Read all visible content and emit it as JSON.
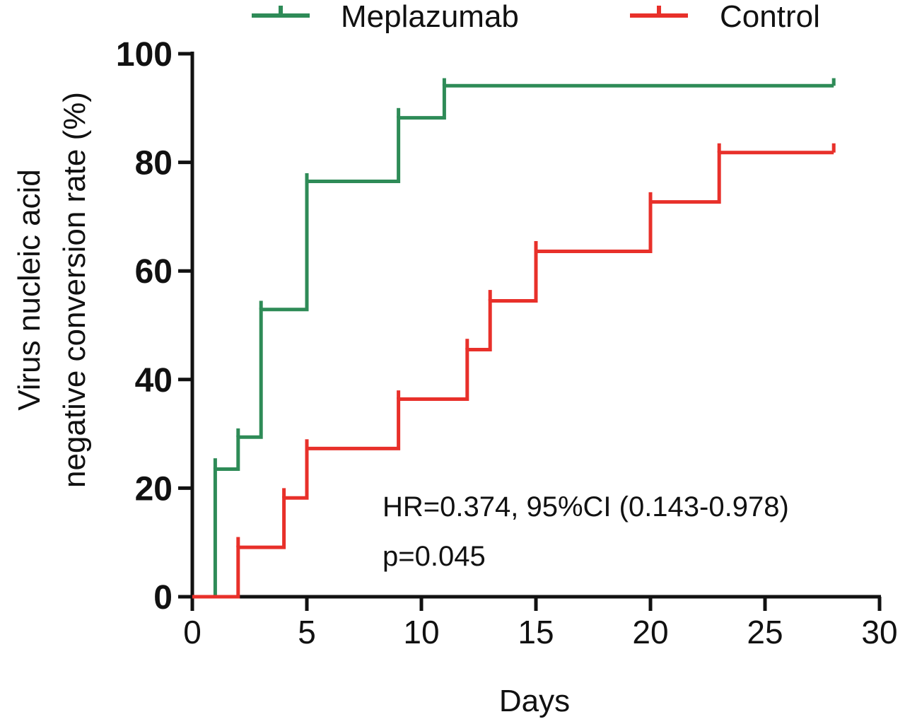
{
  "chart_data": {
    "type": "line",
    "step": true,
    "title": "",
    "xlabel": "Days",
    "ylabel_lines": [
      "Virus nucleic acid",
      "negative conversion rate (%)"
    ],
    "xlim": [
      0,
      30
    ],
    "ylim": [
      0,
      100
    ],
    "xticks": [
      0,
      5,
      10,
      15,
      20,
      25,
      30
    ],
    "yticks": [
      0,
      20,
      40,
      60,
      80,
      100
    ],
    "grid": false,
    "legend_position": "top",
    "series": [
      {
        "name": "Meplazumab",
        "color": "#2e8b57",
        "points": [
          [
            0,
            0
          ],
          [
            1,
            23.5
          ],
          [
            2,
            29.4
          ],
          [
            3,
            52.9
          ],
          [
            5,
            76.5
          ],
          [
            9,
            88.2
          ],
          [
            11,
            94.1
          ],
          [
            28,
            94.1
          ]
        ],
        "censor_marks": [
          [
            1,
            25.5
          ],
          [
            2,
            31
          ],
          [
            3,
            54.5
          ],
          [
            5,
            78
          ],
          [
            9,
            90
          ],
          [
            11,
            95.5
          ],
          [
            28,
            95.5
          ]
        ]
      },
      {
        "name": "Control",
        "color": "#e8302a",
        "points": [
          [
            0,
            0
          ],
          [
            2,
            9.1
          ],
          [
            4,
            18.2
          ],
          [
            5,
            27.3
          ],
          [
            9,
            36.4
          ],
          [
            12,
            45.5
          ],
          [
            13,
            54.5
          ],
          [
            15,
            63.6
          ],
          [
            20,
            72.7
          ],
          [
            23,
            81.8
          ],
          [
            28,
            81.8
          ]
        ],
        "censor_marks": [
          [
            2,
            11
          ],
          [
            4,
            20
          ],
          [
            5,
            29
          ],
          [
            9,
            38
          ],
          [
            12,
            47.5
          ],
          [
            13,
            56.5
          ],
          [
            15,
            65.5
          ],
          [
            20,
            74.5
          ],
          [
            23,
            83.5
          ],
          [
            28,
            83.5
          ]
        ]
      }
    ],
    "annotations": [
      "HR=0.374,  95%CI (0.143-0.978)",
      "p=0.045"
    ]
  }
}
